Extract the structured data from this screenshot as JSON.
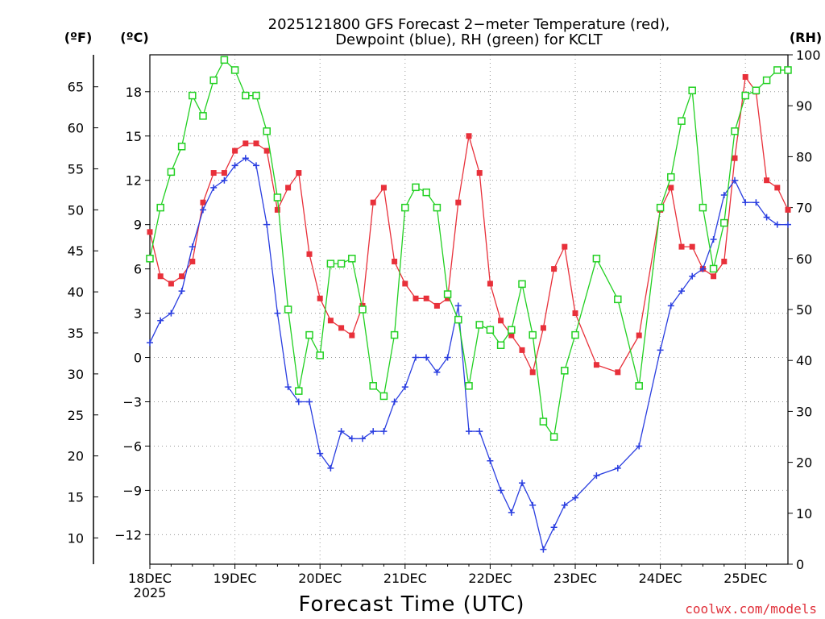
{
  "chart_data": {
    "type": "line",
    "title": "2025121800 GFS Forecast 2-meter Temperature (red), Dewpoint (blue), RH (green) for KCLT",
    "title_lines": [
      "2025121800 GFS Forecast 2−meter Temperature (red),",
      "Dewpoint (blue), RH (green) for KCLT"
    ],
    "xlabel": "Forecast Time (UTC)",
    "credit": "coolwx.com/models",
    "x_unit": "days from 18DEC 00Z",
    "xlim": [
      0,
      7.5
    ],
    "x_ticks": [
      {
        "x": 0,
        "label": "18DEC",
        "sublabel": "2025"
      },
      {
        "x": 1,
        "label": "19DEC",
        "sublabel": ""
      },
      {
        "x": 2,
        "label": "20DEC",
        "sublabel": ""
      },
      {
        "x": 3,
        "label": "21DEC",
        "sublabel": ""
      },
      {
        "x": 4,
        "label": "22DEC",
        "sublabel": ""
      },
      {
        "x": 5,
        "label": "23DEC",
        "sublabel": ""
      },
      {
        "x": 6,
        "label": "24DEC",
        "sublabel": ""
      },
      {
        "x": 7,
        "label": "25DEC",
        "sublabel": ""
      }
    ],
    "axes": {
      "left_f": {
        "unit_label": "(ºF)",
        "ticks": [
          10,
          15,
          20,
          25,
          30,
          35,
          40,
          45,
          50,
          55,
          60,
          65
        ]
      },
      "left_c": {
        "unit_label": "(ºC)",
        "ylim": [
          -14,
          20.5
        ],
        "ticks": [
          -12,
          -9,
          -6,
          -3,
          0,
          3,
          6,
          9,
          12,
          15,
          18
        ],
        "tick_labels": [
          "−12",
          "−9",
          "−6",
          "−3",
          "0",
          "3",
          "6",
          "9",
          "12",
          "15",
          "18"
        ]
      },
      "right_rh": {
        "unit_label": "(RH)",
        "ylim": [
          0,
          100
        ],
        "ticks": [
          0,
          10,
          20,
          30,
          40,
          50,
          60,
          70,
          80,
          90,
          100
        ]
      }
    },
    "series": [
      {
        "name": "Temperature",
        "unit": "C",
        "axis": "left_c",
        "color": "#e8303a",
        "marker": "filled-square",
        "x": [
          0,
          0.125,
          0.25,
          0.375,
          0.5,
          0.625,
          0.75,
          0.875,
          1,
          1.125,
          1.25,
          1.375,
          1.5,
          1.625,
          1.75,
          1.875,
          2,
          2.125,
          2.25,
          2.375,
          2.5,
          2.625,
          2.75,
          2.875,
          3,
          3.125,
          3.25,
          3.375,
          3.5,
          3.625,
          3.75,
          3.875,
          4,
          4.125,
          4.25,
          4.375,
          4.5,
          4.625,
          4.75,
          4.875,
          5,
          5.25,
          5.5,
          5.75,
          6,
          6.125,
          6.25,
          6.375,
          6.5,
          6.625,
          6.75,
          6.875,
          7,
          7.125,
          7.25,
          7.375,
          7.5
        ],
        "values": [
          8.5,
          5.5,
          5,
          5.5,
          6.5,
          10.5,
          12.5,
          12.5,
          14,
          14.5,
          14.5,
          14,
          10,
          11.5,
          12.5,
          7,
          4,
          2.5,
          2,
          1.5,
          3.5,
          10.5,
          11.5,
          6.5,
          5,
          4,
          4,
          3.5,
          4,
          10.5,
          15,
          12.5,
          5,
          2.5,
          1.5,
          0.5,
          -1,
          2,
          6,
          7.5,
          3,
          -0.5,
          -1,
          1.5,
          10,
          11.5,
          7.5,
          7.5,
          6,
          5.5,
          6.5,
          13.5,
          19,
          18,
          12,
          11.5,
          10
        ]
      },
      {
        "name": "Dewpoint",
        "unit": "C",
        "axis": "left_c",
        "color": "#2a3ee0",
        "marker": "plus",
        "x": [
          0,
          0.125,
          0.25,
          0.375,
          0.5,
          0.625,
          0.75,
          0.875,
          1,
          1.125,
          1.25,
          1.375,
          1.5,
          1.625,
          1.75,
          1.875,
          2,
          2.125,
          2.25,
          2.375,
          2.5,
          2.625,
          2.75,
          2.875,
          3,
          3.125,
          3.25,
          3.375,
          3.5,
          3.625,
          3.75,
          3.875,
          4,
          4.125,
          4.25,
          4.375,
          4.5,
          4.625,
          4.75,
          4.875,
          5,
          5.25,
          5.5,
          5.75,
          6,
          6.125,
          6.25,
          6.375,
          6.5,
          6.625,
          6.75,
          6.875,
          7,
          7.125,
          7.25,
          7.375,
          7.5
        ],
        "values": [
          1,
          2.5,
          3,
          4.5,
          7.5,
          10,
          11.5,
          12,
          13,
          13.5,
          13,
          9,
          3,
          -2,
          -3,
          -3,
          -6.5,
          -7.5,
          -5,
          -5.5,
          -5.5,
          -5,
          -5,
          -3,
          -2,
          0,
          0,
          -1,
          0,
          3.5,
          -5,
          -5,
          -7,
          -9,
          -10.5,
          -8.5,
          -10,
          -13,
          -11.5,
          -10,
          -9.5,
          -8,
          -7.5,
          -6,
          0.5,
          3.5,
          4.5,
          5.5,
          6,
          8,
          11,
          12,
          10.5,
          10.5,
          9.5,
          9,
          9
        ]
      },
      {
        "name": "RH",
        "unit": "%",
        "axis": "right_rh",
        "color": "#22d022",
        "marker": "open-square",
        "x": [
          0,
          0.125,
          0.25,
          0.375,
          0.5,
          0.625,
          0.75,
          0.875,
          1,
          1.125,
          1.25,
          1.375,
          1.5,
          1.625,
          1.75,
          1.875,
          2,
          2.125,
          2.25,
          2.375,
          2.5,
          2.625,
          2.75,
          2.875,
          3,
          3.125,
          3.25,
          3.375,
          3.5,
          3.625,
          3.75,
          3.875,
          4,
          4.125,
          4.25,
          4.375,
          4.5,
          4.625,
          4.75,
          4.875,
          5,
          5.25,
          5.5,
          5.75,
          6,
          6.125,
          6.25,
          6.375,
          6.5,
          6.625,
          6.75,
          6.875,
          7,
          7.125,
          7.25,
          7.375,
          7.5
        ],
        "values": [
          60,
          70,
          77,
          82,
          92,
          88,
          95,
          99,
          97,
          92,
          92,
          85,
          72,
          50,
          34,
          45,
          41,
          59,
          59,
          60,
          50,
          35,
          33,
          45,
          70,
          74,
          73,
          70,
          53,
          48,
          35,
          47,
          46,
          43,
          46,
          55,
          45,
          28,
          25,
          38,
          45,
          60,
          52,
          35,
          70,
          76,
          87,
          93,
          70,
          58,
          67,
          85,
          92,
          93,
          95,
          97,
          97
        ]
      }
    ]
  }
}
